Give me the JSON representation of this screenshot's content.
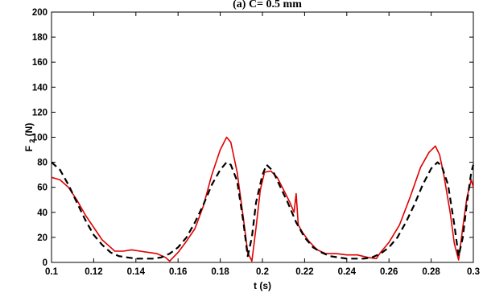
{
  "chart_data": {
    "type": "line",
    "title": "(a) C= 0.5 mm",
    "xlabel": "t (s)",
    "ylabel_main": "F",
    "ylabel_sub": "2",
    "ylabel_unit": "(N)",
    "xlim": [
      0.1,
      0.3
    ],
    "ylim": [
      0,
      200
    ],
    "x_ticks": [
      "0.1",
      "0.12",
      "0.14",
      "0.16",
      "0.18",
      "0.2",
      "0.22",
      "0.24",
      "0.26",
      "0.28",
      "0.3"
    ],
    "y_ticks": [
      "0",
      "20",
      "40",
      "60",
      "80",
      "100",
      "120",
      "140",
      "160",
      "180",
      "200"
    ],
    "grid": false,
    "series": [
      {
        "style": "solid",
        "color": "#e00000",
        "points": [
          [
            0.1,
            68
          ],
          [
            0.104,
            66
          ],
          [
            0.108,
            60
          ],
          [
            0.112,
            50
          ],
          [
            0.116,
            38
          ],
          [
            0.12,
            28
          ],
          [
            0.124,
            18
          ],
          [
            0.128,
            12
          ],
          [
            0.13,
            9
          ],
          [
            0.134,
            9
          ],
          [
            0.138,
            10
          ],
          [
            0.142,
            9
          ],
          [
            0.146,
            8
          ],
          [
            0.15,
            7
          ],
          [
            0.154,
            4
          ],
          [
            0.156,
            1
          ],
          [
            0.16,
            8
          ],
          [
            0.164,
            17
          ],
          [
            0.168,
            27
          ],
          [
            0.172,
            45
          ],
          [
            0.176,
            70
          ],
          [
            0.18,
            90
          ],
          [
            0.183,
            100
          ],
          [
            0.185,
            96
          ],
          [
            0.188,
            72
          ],
          [
            0.191,
            35
          ],
          [
            0.193,
            8
          ],
          [
            0.195,
            1
          ],
          [
            0.197,
            28
          ],
          [
            0.199,
            58
          ],
          [
            0.201,
            72
          ],
          [
            0.204,
            73
          ],
          [
            0.207,
            68
          ],
          [
            0.21,
            58
          ],
          [
            0.213,
            48
          ],
          [
            0.215,
            40
          ],
          [
            0.216,
            55
          ],
          [
            0.217,
            30
          ],
          [
            0.219,
            24
          ],
          [
            0.222,
            17
          ],
          [
            0.226,
            10
          ],
          [
            0.23,
            7
          ],
          [
            0.235,
            7
          ],
          [
            0.24,
            6
          ],
          [
            0.245,
            6
          ],
          [
            0.25,
            4
          ],
          [
            0.254,
            3
          ],
          [
            0.256,
            8
          ],
          [
            0.26,
            16
          ],
          [
            0.265,
            30
          ],
          [
            0.27,
            52
          ],
          [
            0.275,
            76
          ],
          [
            0.279,
            88
          ],
          [
            0.282,
            93
          ],
          [
            0.284,
            86
          ],
          [
            0.286,
            70
          ],
          [
            0.289,
            40
          ],
          [
            0.291,
            15
          ],
          [
            0.293,
            2
          ],
          [
            0.295,
            28
          ],
          [
            0.297,
            52
          ],
          [
            0.299,
            66
          ],
          [
            0.3,
            60
          ]
        ]
      },
      {
        "style": "dashed",
        "color": "#000000",
        "points": [
          [
            0.1,
            80
          ],
          [
            0.104,
            74
          ],
          [
            0.108,
            62
          ],
          [
            0.112,
            48
          ],
          [
            0.116,
            34
          ],
          [
            0.12,
            22
          ],
          [
            0.124,
            14
          ],
          [
            0.128,
            8
          ],
          [
            0.132,
            5
          ],
          [
            0.136,
            4
          ],
          [
            0.14,
            3
          ],
          [
            0.144,
            3
          ],
          [
            0.148,
            3
          ],
          [
            0.152,
            4
          ],
          [
            0.156,
            7
          ],
          [
            0.16,
            12
          ],
          [
            0.164,
            20
          ],
          [
            0.168,
            32
          ],
          [
            0.172,
            46
          ],
          [
            0.176,
            62
          ],
          [
            0.18,
            74
          ],
          [
            0.183,
            80
          ],
          [
            0.185,
            78
          ],
          [
            0.188,
            65
          ],
          [
            0.191,
            32
          ],
          [
            0.193,
            5
          ],
          [
            0.195,
            20
          ],
          [
            0.197,
            48
          ],
          [
            0.2,
            70
          ],
          [
            0.202,
            78
          ],
          [
            0.205,
            73
          ],
          [
            0.208,
            62
          ],
          [
            0.212,
            48
          ],
          [
            0.216,
            32
          ],
          [
            0.22,
            20
          ],
          [
            0.224,
            12
          ],
          [
            0.228,
            8
          ],
          [
            0.232,
            5
          ],
          [
            0.236,
            4
          ],
          [
            0.24,
            3
          ],
          [
            0.244,
            3
          ],
          [
            0.248,
            3
          ],
          [
            0.252,
            4
          ],
          [
            0.256,
            7
          ],
          [
            0.26,
            12
          ],
          [
            0.264,
            20
          ],
          [
            0.268,
            32
          ],
          [
            0.272,
            46
          ],
          [
            0.276,
            62
          ],
          [
            0.28,
            75
          ],
          [
            0.283,
            80
          ],
          [
            0.285,
            77
          ],
          [
            0.288,
            62
          ],
          [
            0.291,
            30
          ],
          [
            0.293,
            5
          ],
          [
            0.295,
            20
          ],
          [
            0.297,
            48
          ],
          [
            0.299,
            72
          ],
          [
            0.3,
            78
          ]
        ]
      }
    ]
  }
}
